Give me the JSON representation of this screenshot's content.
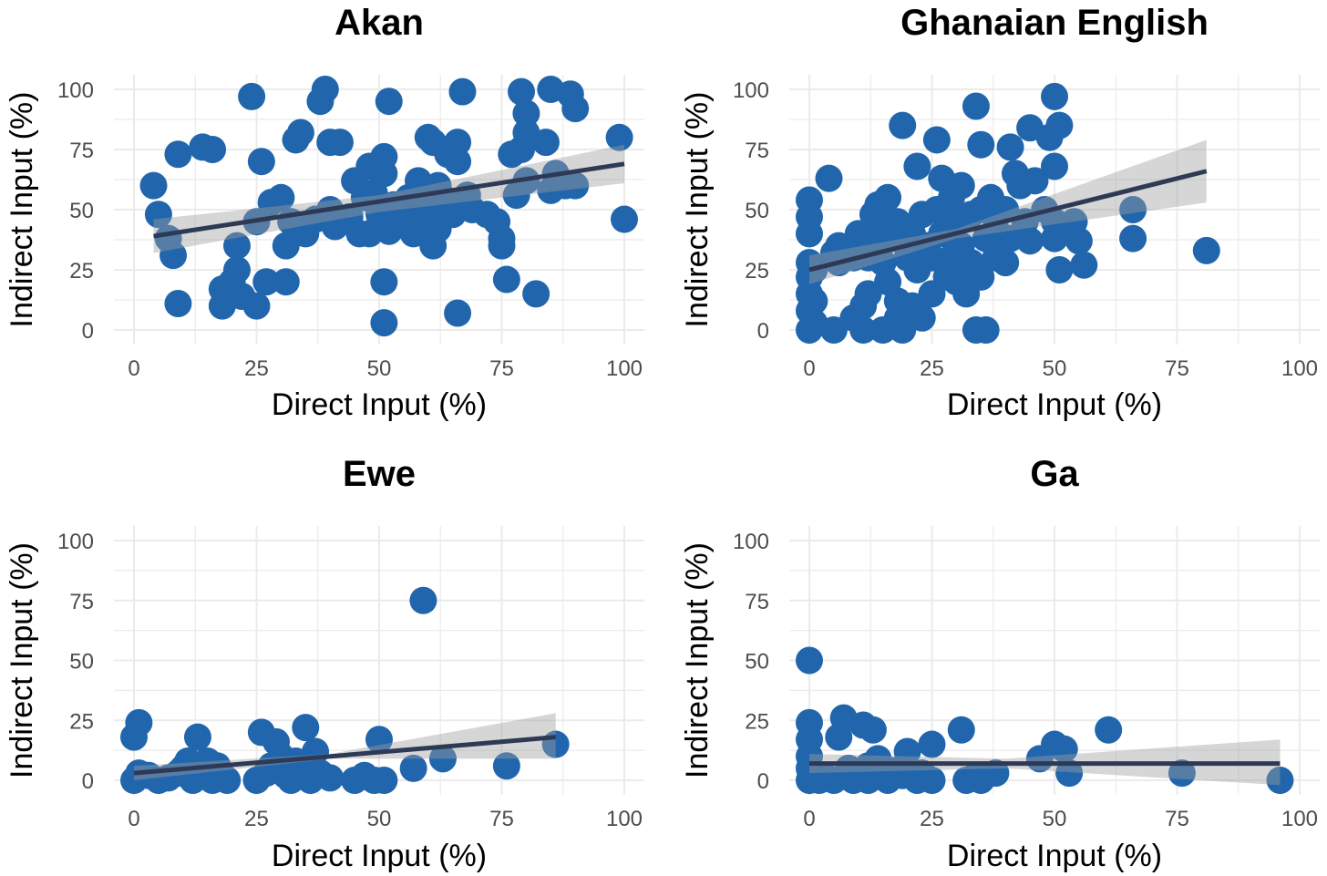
{
  "chart_data": [
    {
      "type": "scatter",
      "title": "Akan",
      "xlabel": "Direct Input (%)",
      "ylabel": "Indirect Input (%)",
      "xlim": [
        0,
        100
      ],
      "ylim": [
        0,
        100
      ],
      "xticks": [
        "0",
        "25",
        "50",
        "75",
        "100"
      ],
      "yticks": [
        "0",
        "25",
        "50",
        "75",
        "100"
      ],
      "grid": true,
      "point_color": "#2166ac",
      "fit": {
        "from": [
          4,
          39
        ],
        "to": [
          100,
          69
        ],
        "band_lo": [
          [
            4,
            32
          ],
          [
            50,
            49
          ],
          [
            100,
            61
          ]
        ],
        "band_hi": [
          [
            4,
            46
          ],
          [
            50,
            56
          ],
          [
            100,
            77
          ]
        ]
      },
      "points": [
        [
          4,
          60
        ],
        [
          5,
          48
        ],
        [
          7,
          38
        ],
        [
          8,
          31
        ],
        [
          9,
          73
        ],
        [
          9,
          11
        ],
        [
          14,
          76
        ],
        [
          16,
          75
        ],
        [
          18,
          10
        ],
        [
          18,
          17
        ],
        [
          20,
          20
        ],
        [
          21,
          25
        ],
        [
          21,
          35
        ],
        [
          22,
          14
        ],
        [
          24,
          97
        ],
        [
          25,
          10
        ],
        [
          25,
          45
        ],
        [
          26,
          70
        ],
        [
          27,
          20
        ],
        [
          28,
          53
        ],
        [
          30,
          55
        ],
        [
          31,
          35
        ],
        [
          31,
          20
        ],
        [
          32,
          45
        ],
        [
          33,
          79
        ],
        [
          34,
          82
        ],
        [
          35,
          40
        ],
        [
          37,
          46
        ],
        [
          38,
          95
        ],
        [
          39,
          100
        ],
        [
          40,
          78
        ],
        [
          40,
          50
        ],
        [
          41,
          43
        ],
        [
          42,
          78
        ],
        [
          44,
          47
        ],
        [
          45,
          62
        ],
        [
          46,
          40
        ],
        [
          47,
          55
        ],
        [
          48,
          68
        ],
        [
          48,
          40
        ],
        [
          49,
          57
        ],
        [
          50,
          48
        ],
        [
          51,
          72
        ],
        [
          51,
          65
        ],
        [
          52,
          95
        ],
        [
          51,
          20
        ],
        [
          51,
          3
        ],
        [
          52,
          41
        ],
        [
          53,
          52
        ],
        [
          54,
          45
        ],
        [
          55,
          48
        ],
        [
          56,
          55
        ],
        [
          57,
          40
        ],
        [
          58,
          62
        ],
        [
          59,
          45
        ],
        [
          60,
          80
        ],
        [
          60,
          50
        ],
        [
          61,
          35
        ],
        [
          61,
          78
        ],
        [
          62,
          60
        ],
        [
          62,
          42
        ],
        [
          63,
          55
        ],
        [
          64,
          73
        ],
        [
          65,
          48
        ],
        [
          66,
          78
        ],
        [
          66,
          70
        ],
        [
          67,
          99
        ],
        [
          66,
          7
        ],
        [
          68,
          56
        ],
        [
          69,
          50
        ],
        [
          72,
          48
        ],
        [
          74,
          45
        ],
        [
          75,
          38
        ],
        [
          75,
          35
        ],
        [
          76,
          21
        ],
        [
          77,
          73
        ],
        [
          78,
          56
        ],
        [
          79,
          75
        ],
        [
          79,
          99
        ],
        [
          80,
          90
        ],
        [
          80,
          82
        ],
        [
          80,
          62
        ],
        [
          82,
          15
        ],
        [
          84,
          78
        ],
        [
          85,
          100
        ],
        [
          85,
          58
        ],
        [
          86,
          65
        ],
        [
          88,
          60
        ],
        [
          89,
          98
        ],
        [
          90,
          92
        ],
        [
          90,
          60
        ],
        [
          99,
          80
        ],
        [
          100,
          46
        ]
      ]
    },
    {
      "type": "scatter",
      "title": "Ghanaian English",
      "xlabel": "Direct Input (%)",
      "ylabel": "Indirect Input (%)",
      "xlim": [
        0,
        100
      ],
      "ylim": [
        0,
        100
      ],
      "xticks": [
        "0",
        "25",
        "50",
        "75",
        "100"
      ],
      "yticks": [
        "0",
        "25",
        "50",
        "75",
        "100"
      ],
      "grid": true,
      "point_color": "#2166ac",
      "fit": {
        "from": [
          0,
          25
        ],
        "to": [
          81,
          66
        ],
        "band_lo": [
          [
            0,
            19
          ],
          [
            30,
            38
          ],
          [
            81,
            53
          ]
        ],
        "band_hi": [
          [
            0,
            31
          ],
          [
            30,
            42
          ],
          [
            81,
            79
          ]
        ]
      },
      "points": [
        [
          0,
          54
        ],
        [
          0,
          47
        ],
        [
          0,
          40
        ],
        [
          0,
          28
        ],
        [
          0,
          22
        ],
        [
          0,
          15
        ],
        [
          0,
          8
        ],
        [
          0,
          0
        ],
        [
          1,
          25
        ],
        [
          1,
          12
        ],
        [
          1,
          3
        ],
        [
          4,
          63
        ],
        [
          5,
          32
        ],
        [
          5,
          0
        ],
        [
          6,
          35
        ],
        [
          6,
          28
        ],
        [
          7,
          30
        ],
        [
          9,
          30
        ],
        [
          9,
          5
        ],
        [
          10,
          40
        ],
        [
          11,
          10
        ],
        [
          11,
          0
        ],
        [
          12,
          30
        ],
        [
          12,
          15
        ],
        [
          13,
          48
        ],
        [
          13,
          35
        ],
        [
          14,
          52
        ],
        [
          15,
          28
        ],
        [
          15,
          42
        ],
        [
          15,
          0
        ],
        [
          16,
          20
        ],
        [
          16,
          55
        ],
        [
          17,
          38
        ],
        [
          18,
          45
        ],
        [
          18,
          12
        ],
        [
          18,
          5
        ],
        [
          19,
          85
        ],
        [
          19,
          0
        ],
        [
          20,
          30
        ],
        [
          21,
          40
        ],
        [
          21,
          10
        ],
        [
          22,
          68
        ],
        [
          22,
          25
        ],
        [
          23,
          48
        ],
        [
          23,
          5
        ],
        [
          24,
          35
        ],
        [
          25,
          30
        ],
        [
          25,
          15
        ],
        [
          26,
          79
        ],
        [
          26,
          50
        ],
        [
          27,
          63
        ],
        [
          27,
          40
        ],
        [
          28,
          22
        ],
        [
          29,
          55
        ],
        [
          29,
          30
        ],
        [
          30,
          45
        ],
        [
          30,
          20
        ],
        [
          31,
          60
        ],
        [
          31,
          35
        ],
        [
          32,
          15
        ],
        [
          33,
          48
        ],
        [
          33,
          28
        ],
        [
          34,
          93
        ],
        [
          34,
          0
        ],
        [
          35,
          77
        ],
        [
          35,
          50
        ],
        [
          35,
          22
        ],
        [
          36,
          38
        ],
        [
          36,
          0
        ],
        [
          37,
          55
        ],
        [
          38,
          42
        ],
        [
          38,
          30
        ],
        [
          40,
          50
        ],
        [
          40,
          28
        ],
        [
          41,
          76
        ],
        [
          41,
          38
        ],
        [
          42,
          65
        ],
        [
          43,
          60
        ],
        [
          44,
          45
        ],
        [
          45,
          84
        ],
        [
          45,
          37
        ],
        [
          46,
          62
        ],
        [
          48,
          50
        ],
        [
          49,
          80
        ],
        [
          50,
          97
        ],
        [
          50,
          68
        ],
        [
          50,
          45
        ],
        [
          50,
          38
        ],
        [
          51,
          25
        ],
        [
          51,
          85
        ],
        [
          54,
          45
        ],
        [
          55,
          37
        ],
        [
          56,
          27
        ],
        [
          66,
          50
        ],
        [
          66,
          38
        ],
        [
          81,
          33
        ]
      ]
    },
    {
      "type": "scatter",
      "title": "Ewe",
      "xlabel": "Direct Input (%)",
      "ylabel": "Indirect Input (%)",
      "xlim": [
        0,
        100
      ],
      "ylim": [
        0,
        100
      ],
      "xticks": [
        "0",
        "25",
        "50",
        "75",
        "100"
      ],
      "yticks": [
        "0",
        "25",
        "50",
        "75",
        "100"
      ],
      "grid": true,
      "point_color": "#2166ac",
      "fit": {
        "from": [
          0,
          3
        ],
        "to": [
          86,
          18
        ],
        "band_lo": [
          [
            0,
            0
          ],
          [
            40,
            9
          ],
          [
            86,
            9
          ]
        ],
        "band_hi": [
          [
            0,
            6
          ],
          [
            40,
            11
          ],
          [
            86,
            28
          ]
        ]
      },
      "points": [
        [
          0,
          0
        ],
        [
          0,
          18
        ],
        [
          1,
          24
        ],
        [
          1,
          3
        ],
        [
          3,
          2
        ],
        [
          5,
          0
        ],
        [
          7,
          1
        ],
        [
          9,
          3
        ],
        [
          10,
          5
        ],
        [
          11,
          8
        ],
        [
          12,
          0
        ],
        [
          13,
          18
        ],
        [
          13,
          4
        ],
        [
          15,
          8
        ],
        [
          16,
          0
        ],
        [
          17,
          6
        ],
        [
          18,
          2
        ],
        [
          19,
          0
        ],
        [
          25,
          0
        ],
        [
          26,
          20
        ],
        [
          27,
          3
        ],
        [
          28,
          6
        ],
        [
          29,
          16
        ],
        [
          30,
          10
        ],
        [
          31,
          2
        ],
        [
          32,
          0
        ],
        [
          33,
          8
        ],
        [
          35,
          22
        ],
        [
          35,
          6
        ],
        [
          36,
          0
        ],
        [
          37,
          12
        ],
        [
          38,
          3
        ],
        [
          40,
          1
        ],
        [
          45,
          0
        ],
        [
          47,
          2
        ],
        [
          49,
          0
        ],
        [
          50,
          17
        ],
        [
          51,
          0
        ],
        [
          57,
          5
        ],
        [
          59,
          75
        ],
        [
          63,
          9
        ],
        [
          76,
          6
        ],
        [
          86,
          15
        ]
      ]
    },
    {
      "type": "scatter",
      "title": "Ga",
      "xlabel": "Direct Input (%)",
      "ylabel": "Indirect Input (%)",
      "xlim": [
        0,
        100
      ],
      "ylim": [
        0,
        100
      ],
      "xticks": [
        "0",
        "25",
        "50",
        "75",
        "100"
      ],
      "yticks": [
        "0",
        "25",
        "50",
        "75",
        "100"
      ],
      "grid": true,
      "point_color": "#2166ac",
      "fit": {
        "from": [
          0,
          7
        ],
        "to": [
          96,
          7
        ],
        "band_lo": [
          [
            0,
            3
          ],
          [
            40,
            5
          ],
          [
            96,
            -2
          ]
        ],
        "band_hi": [
          [
            0,
            11
          ],
          [
            40,
            9
          ],
          [
            96,
            17
          ]
        ]
      },
      "points": [
        [
          0,
          50
        ],
        [
          0,
          24
        ],
        [
          0,
          17
        ],
        [
          0,
          10
        ],
        [
          0,
          5
        ],
        [
          0,
          0
        ],
        [
          1,
          3
        ],
        [
          2,
          0
        ],
        [
          3,
          2
        ],
        [
          5,
          0
        ],
        [
          6,
          18
        ],
        [
          7,
          26
        ],
        [
          8,
          5
        ],
        [
          9,
          0
        ],
        [
          10,
          2
        ],
        [
          11,
          23
        ],
        [
          12,
          0
        ],
        [
          12,
          6
        ],
        [
          13,
          21
        ],
        [
          14,
          9
        ],
        [
          15,
          2
        ],
        [
          16,
          0
        ],
        [
          17,
          4
        ],
        [
          19,
          2
        ],
        [
          20,
          12
        ],
        [
          22,
          0
        ],
        [
          23,
          3
        ],
        [
          25,
          15
        ],
        [
          25,
          0
        ],
        [
          31,
          21
        ],
        [
          32,
          0
        ],
        [
          34,
          2
        ],
        [
          35,
          0
        ],
        [
          38,
          3
        ],
        [
          47,
          9
        ],
        [
          50,
          15
        ],
        [
          52,
          13
        ],
        [
          53,
          3
        ],
        [
          61,
          21
        ],
        [
          76,
          3
        ],
        [
          96,
          0
        ]
      ]
    }
  ]
}
